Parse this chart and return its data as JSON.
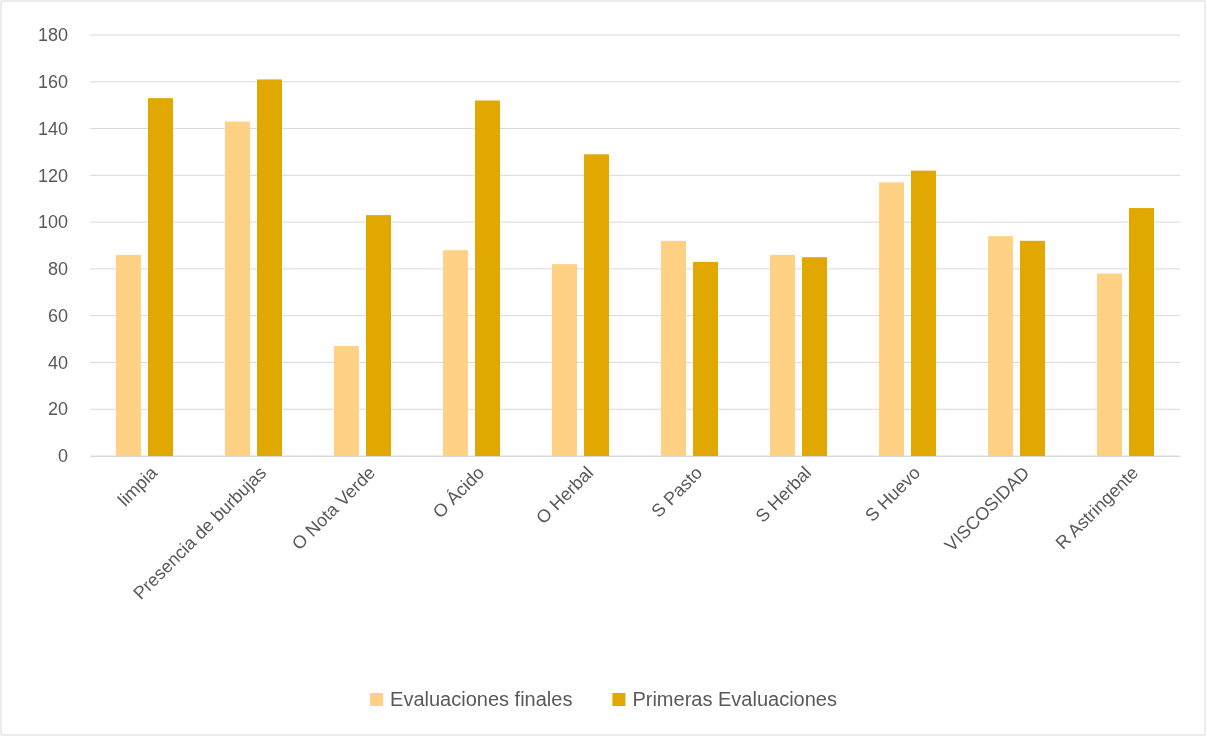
{
  "chart_data": {
    "type": "bar",
    "categories": [
      "limpia",
      "Presencia de burbujas",
      "O Nota Verde",
      "O Ácido",
      "O Herbal",
      "S Pasto",
      "S Herbal",
      "S Huevo",
      "VISCOSIDAD",
      "R Astringente"
    ],
    "series": [
      {
        "name": "Evaluaciones finales",
        "color": "#ffd185",
        "values": [
          86,
          143,
          47,
          88,
          82,
          92,
          86,
          117,
          94,
          78
        ]
      },
      {
        "name": "Primeras Evaluaciones",
        "color": "#e0a800",
        "values": [
          153,
          161,
          103,
          152,
          129,
          83,
          85,
          122,
          92,
          106
        ]
      }
    ],
    "ylim": [
      0,
      180
    ],
    "yticks": [
      0,
      20,
      40,
      60,
      80,
      100,
      120,
      140,
      160,
      180
    ],
    "grid": "y",
    "legend": "bottom"
  }
}
